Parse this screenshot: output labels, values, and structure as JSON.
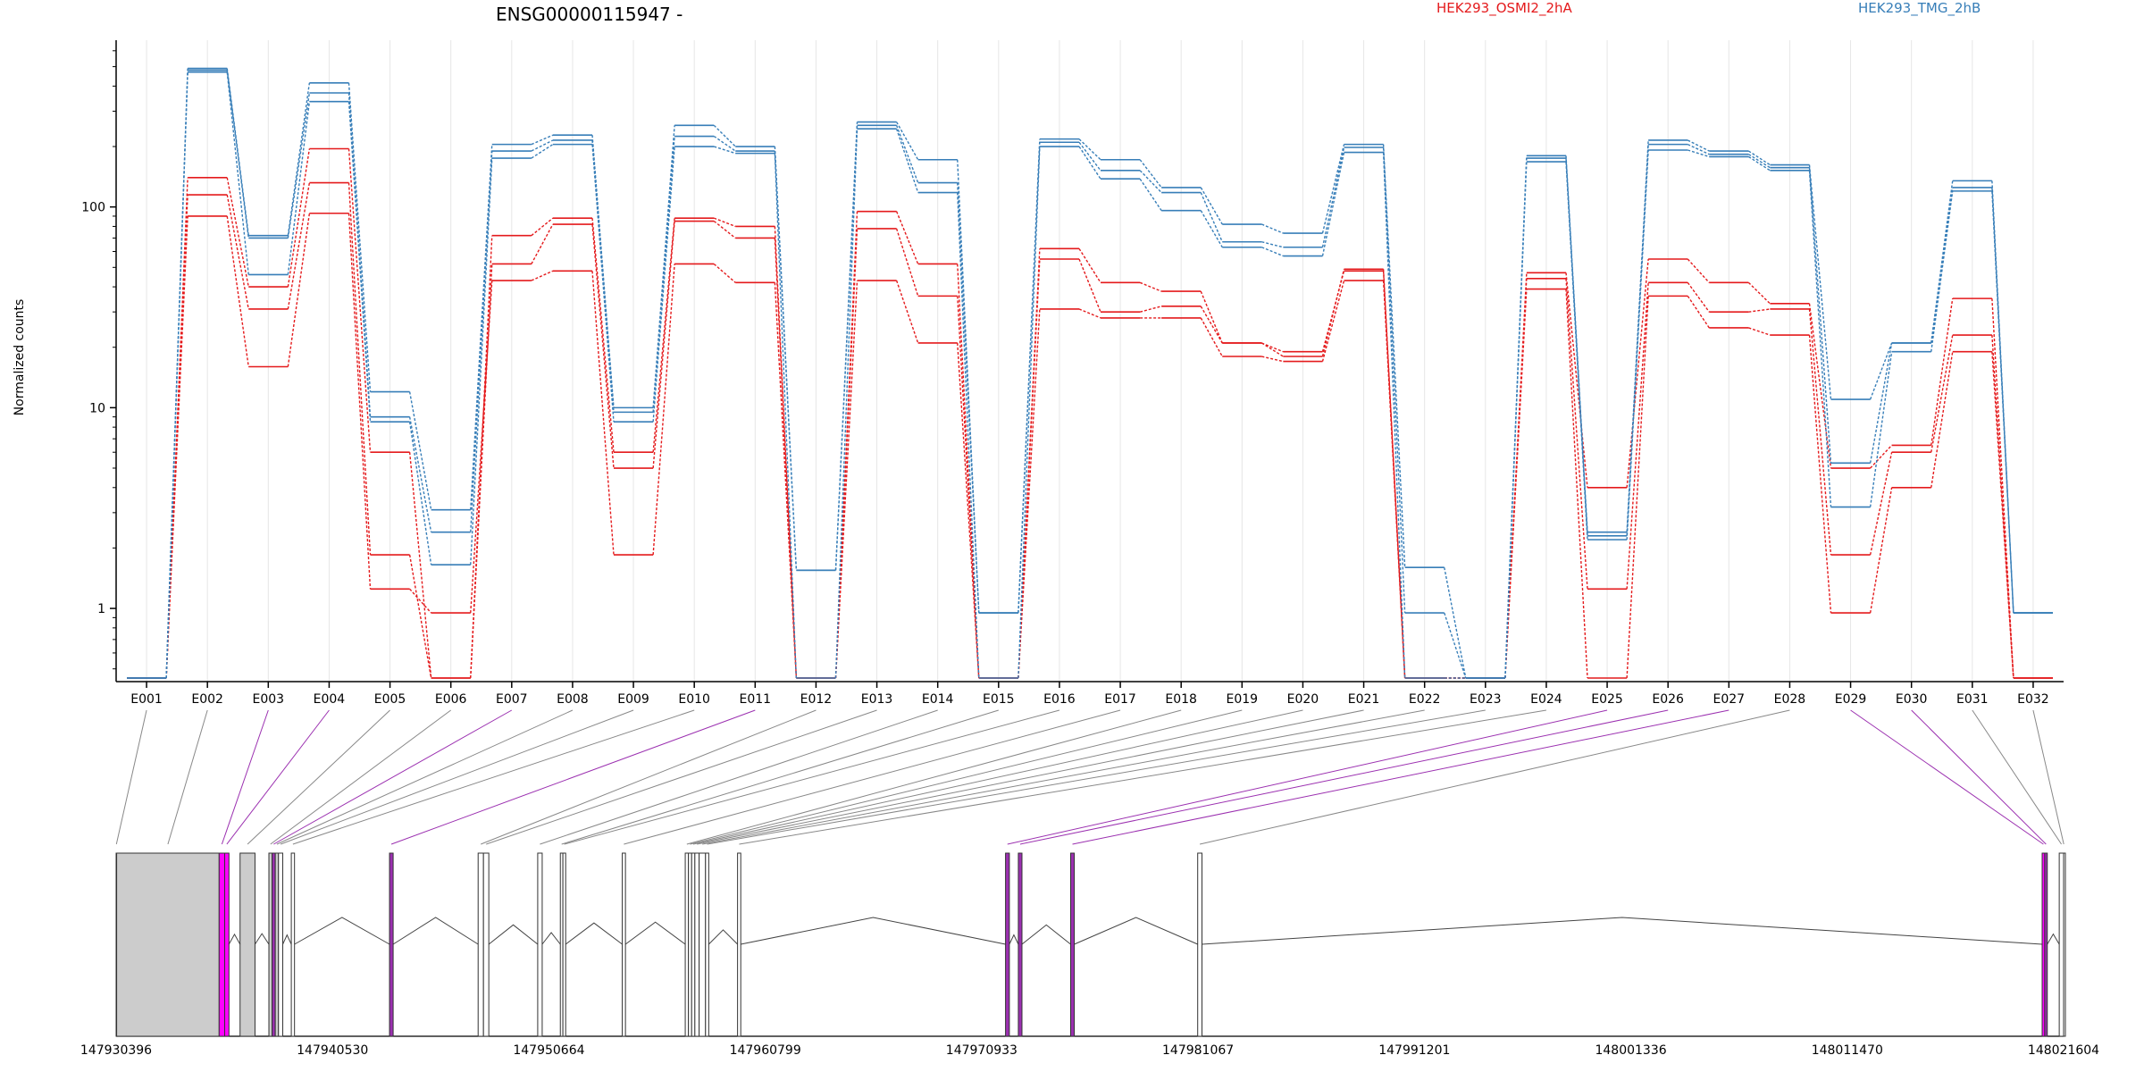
{
  "chart_data": {
    "type": "line",
    "title": "ENSG00000115947 -",
    "xlabel": "",
    "ylabel": "Normalized counts",
    "yscale": "log",
    "ylim": [
      0.45,
      650
    ],
    "yticks": [
      "1",
      "10",
      "100"
    ],
    "ytick_values": [
      1,
      10,
      100
    ],
    "grid": true,
    "legend_position": "top-right",
    "categories": [
      "E001",
      "E002",
      "E003",
      "E004",
      "E005",
      "E006",
      "E007",
      "E008",
      "E009",
      "E010",
      "E011",
      "E012",
      "E013",
      "E014",
      "E015",
      "E016",
      "E017",
      "E018",
      "E019",
      "E020",
      "E021",
      "E022",
      "E023",
      "E024",
      "E025",
      "E026",
      "E027",
      "E028",
      "E029",
      "E030",
      "E031",
      "E032"
    ],
    "groups": [
      {
        "name": "HEK293_OSMI2_2hA",
        "color": "#e41a1c"
      },
      {
        "name": "HEK293_TMG_2hB",
        "color": "#377eb8"
      }
    ],
    "series": [
      {
        "group": 0,
        "values": [
          0.45,
          140,
          40,
          195,
          6,
          0.45,
          72,
          88,
          6,
          88,
          80,
          0.45,
          95,
          52,
          0.45,
          62,
          42,
          38,
          21,
          19,
          48,
          0.45,
          0.45,
          47,
          4,
          55,
          42,
          33,
          5,
          6.5,
          35,
          0.45
        ]
      },
      {
        "group": 0,
        "values": [
          0.45,
          115,
          31,
          132,
          1.85,
          0.45,
          52,
          82,
          5,
          85,
          70,
          0.45,
          78,
          36,
          0.45,
          55,
          30,
          32,
          21,
          18,
          49,
          0.45,
          0.45,
          44,
          1.25,
          42,
          30,
          31,
          1.85,
          6,
          23,
          0.45
        ]
      },
      {
        "group": 0,
        "values": [
          0.45,
          90,
          16,
          93,
          1.25,
          0.95,
          43,
          48,
          1.85,
          52,
          42,
          0.45,
          43,
          21,
          0.45,
          31,
          28,
          28,
          18,
          17,
          43,
          0.45,
          0.45,
          39,
          0.45,
          36,
          25,
          23,
          0.95,
          4,
          19,
          0.45
        ]
      },
      {
        "group": 1,
        "values": [
          0.45,
          490,
          72,
          415,
          12,
          3.1,
          205,
          228,
          10,
          255,
          200,
          1.55,
          265,
          172,
          0.95,
          218,
          172,
          125,
          82,
          74,
          205,
          1.6,
          0.45,
          180,
          2.4,
          215,
          190,
          162,
          11,
          21,
          135,
          0.95
        ]
      },
      {
        "group": 1,
        "values": [
          0.45,
          480,
          70,
          370,
          9,
          2.4,
          190,
          215,
          9.5,
          225,
          190,
          1.55,
          255,
          132,
          0.95,
          210,
          152,
          118,
          67,
          63,
          198,
          0.95,
          0.45,
          175,
          2.3,
          205,
          183,
          157,
          5.3,
          21,
          125,
          0.95
        ]
      },
      {
        "group": 1,
        "values": [
          0.45,
          470,
          46,
          335,
          8.5,
          1.65,
          175,
          205,
          8.5,
          200,
          185,
          0.45,
          245,
          118,
          0.45,
          200,
          138,
          96,
          63,
          57,
          187,
          0.45,
          0.45,
          168,
          2.2,
          192,
          178,
          152,
          3.2,
          19,
          120,
          0.95
        ]
      }
    ],
    "gene_track": {
      "start_label": "147930396",
      "tick_labels": [
        "147930396",
        "147940530",
        "147950664",
        "147960799",
        "147970933",
        "147981067",
        "147991201",
        "148001336",
        "148011470",
        "148021604"
      ],
      "exons": [
        {
          "id": "E001",
          "start": 147930396,
          "end": 147930420,
          "fill": "#cccccc",
          "connector": "#888888"
        },
        {
          "id": "E002",
          "start": 147930420,
          "end": 147935220,
          "fill": "#cccccc",
          "connector": "#888888"
        },
        {
          "id": "E003",
          "start": 147935220,
          "end": 147935480,
          "fill": "#ff00ff",
          "connector": "#9b30b0"
        },
        {
          "id": "E004",
          "start": 147935480,
          "end": 147935680,
          "fill": "#ff00ff",
          "connector": "#9b30b0"
        },
        {
          "id": "E005",
          "start": 147936200,
          "end": 147936900,
          "fill": "#cccccc",
          "connector": "#888888"
        },
        {
          "id": "E006",
          "start": 147937550,
          "end": 147937700,
          "fill": "#cccccc",
          "connector": "#888888"
        },
        {
          "id": "E007",
          "start": 147937700,
          "end": 147937850,
          "fill": "#9b30b0",
          "connector": "#9b30b0"
        },
        {
          "id": "E008",
          "start": 147937850,
          "end": 147938000,
          "fill": "#cccccc",
          "connector": "#888888"
        },
        {
          "id": "E009",
          "start": 147938000,
          "end": 147938200,
          "fill": "#ffffff",
          "connector": "#888888"
        },
        {
          "id": "E010",
          "start": 147938600,
          "end": 147938750,
          "fill": "#ffffff",
          "connector": "#888888"
        },
        {
          "id": "E011",
          "start": 147943200,
          "end": 147943370,
          "fill": "#9b30b0",
          "connector": "#9b30b0"
        },
        {
          "id": "E012",
          "start": 147947350,
          "end": 147947600,
          "fill": "#ffffff",
          "connector": "#888888"
        },
        {
          "id": "E013",
          "start": 147947600,
          "end": 147947850,
          "fill": "#ffffff",
          "connector": "#888888"
        },
        {
          "id": "E014",
          "start": 147950140,
          "end": 147950350,
          "fill": "#ffffff",
          "connector": "#888888"
        },
        {
          "id": "E015",
          "start": 147951200,
          "end": 147951320,
          "fill": "#ffffff",
          "connector": "#888888"
        },
        {
          "id": "E016",
          "start": 147951320,
          "end": 147951450,
          "fill": "#ffffff",
          "connector": "#888888"
        },
        {
          "id": "E017",
          "start": 147954100,
          "end": 147954250,
          "fill": "#ffffff",
          "connector": "#888888"
        },
        {
          "id": "E018",
          "start": 147957050,
          "end": 147957200,
          "fill": "#ffffff",
          "connector": "#888888"
        },
        {
          "id": "E019",
          "start": 147957200,
          "end": 147957350,
          "fill": "#ffffff",
          "connector": "#888888"
        },
        {
          "id": "E020",
          "start": 147957350,
          "end": 147957500,
          "fill": "#ffffff",
          "connector": "#888888"
        },
        {
          "id": "E021",
          "start": 147957500,
          "end": 147957700,
          "fill": "#ffffff",
          "connector": "#888888"
        },
        {
          "id": "E022",
          "start": 147957700,
          "end": 147958000,
          "fill": "#ffffff",
          "connector": "#888888"
        },
        {
          "id": "E023",
          "start": 147958000,
          "end": 147958150,
          "fill": "#ffffff",
          "connector": "#888888"
        },
        {
          "id": "E024",
          "start": 147959500,
          "end": 147959650,
          "fill": "#ffffff",
          "connector": "#888888"
        },
        {
          "id": "E025",
          "start": 147972050,
          "end": 147972230,
          "fill": "#9b30b0",
          "connector": "#9b30b0"
        },
        {
          "id": "E026",
          "start": 147972650,
          "end": 147972820,
          "fill": "#9b30b0",
          "connector": "#9b30b0"
        },
        {
          "id": "E027",
          "start": 147975100,
          "end": 147975270,
          "fill": "#9b30b0",
          "connector": "#9b30b0"
        },
        {
          "id": "E028",
          "start": 147981050,
          "end": 147981250,
          "fill": "#ffffff",
          "connector": "#888888"
        },
        {
          "id": "E029",
          "start": 148020600,
          "end": 148020720,
          "fill": "#ff00ff",
          "connector": "#9b30b0"
        },
        {
          "id": "E030",
          "start": 148020720,
          "end": 148020840,
          "fill": "#9b30b0",
          "connector": "#9b30b0"
        },
        {
          "id": "E031",
          "start": 148021400,
          "end": 148021604,
          "fill": "#ffffff",
          "connector": "#888888"
        },
        {
          "id": "E032",
          "start": 148021604,
          "end": 148021620,
          "fill": "#ffffff",
          "connector": "#888888"
        }
      ]
    }
  }
}
